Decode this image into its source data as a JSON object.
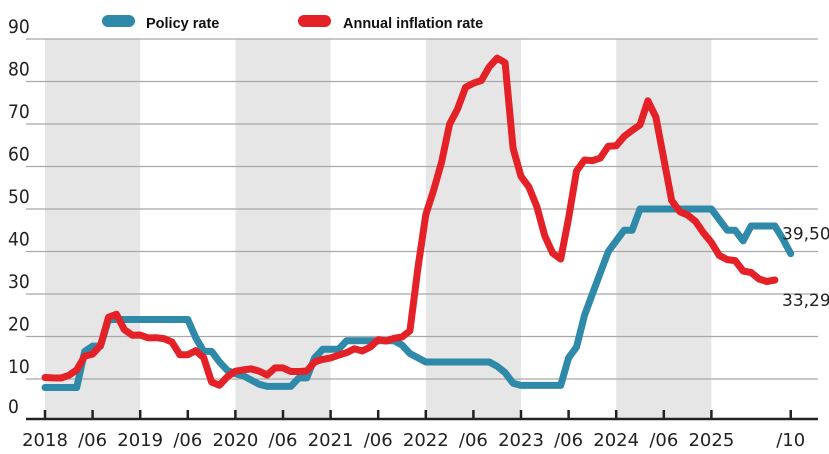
{
  "chart_data": {
    "type": "line",
    "title": "",
    "xlabel": "",
    "ylabel": "",
    "ylim": [
      0,
      90
    ],
    "yticks": [
      0,
      10,
      20,
      30,
      40,
      50,
      60,
      70,
      80,
      90
    ],
    "ytick_labels": [
      "0",
      "10",
      "20",
      "30",
      "40",
      "50",
      "60",
      "70",
      "80",
      "90"
    ],
    "x_start": "2018-01",
    "x_end": "2025-10",
    "xticks": [
      {
        "month": 0,
        "label": "2018"
      },
      {
        "month": 6,
        "label": "/06"
      },
      {
        "month": 12,
        "label": "2019"
      },
      {
        "month": 18,
        "label": "/06"
      },
      {
        "month": 24,
        "label": "2020"
      },
      {
        "month": 30,
        "label": "/06"
      },
      {
        "month": 36,
        "label": "2021"
      },
      {
        "month": 42,
        "label": "/06"
      },
      {
        "month": 48,
        "label": "2022"
      },
      {
        "month": 54,
        "label": "/06"
      },
      {
        "month": 60,
        "label": "2023"
      },
      {
        "month": 66,
        "label": "/06"
      },
      {
        "month": 72,
        "label": "2024"
      },
      {
        "month": 78,
        "label": "/06"
      },
      {
        "month": 84,
        "label": "2025"
      },
      {
        "month": 94,
        "label": "/10"
      }
    ],
    "shaded_years": [
      "2018",
      "2020",
      "2022",
      "2024"
    ],
    "grid": true,
    "legend_position": "top",
    "series": [
      {
        "name": "Policy rate",
        "color": "#2e8aa8",
        "end_label": "39,50",
        "points": [
          [
            0,
            8
          ],
          [
            1,
            8
          ],
          [
            2,
            8
          ],
          [
            3,
            8
          ],
          [
            4,
            8
          ],
          [
            5,
            16.5
          ],
          [
            6,
            17.75
          ],
          [
            7,
            17.75
          ],
          [
            8,
            24
          ],
          [
            9,
            24
          ],
          [
            10,
            24
          ],
          [
            11,
            24
          ],
          [
            12,
            24
          ],
          [
            13,
            24
          ],
          [
            14,
            24
          ],
          [
            15,
            24
          ],
          [
            16,
            24
          ],
          [
            17,
            24
          ],
          [
            18,
            24
          ],
          [
            19,
            19.75
          ],
          [
            20,
            16.5
          ],
          [
            21,
            16.5
          ],
          [
            22,
            14
          ],
          [
            23,
            12
          ],
          [
            24,
            11.25
          ],
          [
            25,
            10.75
          ],
          [
            26,
            9.75
          ],
          [
            27,
            8.75
          ],
          [
            28,
            8.25
          ],
          [
            29,
            8.25
          ],
          [
            30,
            8.25
          ],
          [
            31,
            8.25
          ],
          [
            32,
            10.25
          ],
          [
            33,
            10.25
          ],
          [
            34,
            15
          ],
          [
            35,
            17
          ],
          [
            36,
            17
          ],
          [
            37,
            17
          ],
          [
            38,
            19
          ],
          [
            39,
            19
          ],
          [
            40,
            19
          ],
          [
            41,
            19
          ],
          [
            42,
            19
          ],
          [
            43,
            19
          ],
          [
            44,
            19
          ],
          [
            45,
            18
          ],
          [
            46,
            16
          ],
          [
            47,
            15
          ],
          [
            48,
            14
          ],
          [
            49,
            14
          ],
          [
            50,
            14
          ],
          [
            51,
            14
          ],
          [
            52,
            14
          ],
          [
            53,
            14
          ],
          [
            54,
            14
          ],
          [
            55,
            14
          ],
          [
            56,
            14
          ],
          [
            57,
            13
          ],
          [
            58,
            11.5
          ],
          [
            59,
            9
          ],
          [
            60,
            8.5
          ],
          [
            61,
            8.5
          ],
          [
            62,
            8.5
          ],
          [
            63,
            8.5
          ],
          [
            64,
            8.5
          ],
          [
            65,
            8.5
          ],
          [
            66,
            15
          ],
          [
            67,
            17.5
          ],
          [
            68,
            25
          ],
          [
            69,
            30
          ],
          [
            70,
            35
          ],
          [
            71,
            40
          ],
          [
            72,
            42.5
          ],
          [
            73,
            45
          ],
          [
            74,
            45
          ],
          [
            75,
            50
          ],
          [
            76,
            50
          ],
          [
            77,
            50
          ],
          [
            78,
            50
          ],
          [
            79,
            50
          ],
          [
            80,
            50
          ],
          [
            81,
            50
          ],
          [
            82,
            50
          ],
          [
            83,
            50
          ],
          [
            84,
            50
          ],
          [
            85,
            47.5
          ],
          [
            86,
            45
          ],
          [
            87,
            45
          ],
          [
            88,
            42.5
          ],
          [
            89,
            46
          ],
          [
            90,
            46
          ],
          [
            91,
            46
          ],
          [
            92,
            46
          ],
          [
            93,
            43
          ],
          [
            94,
            39.5
          ]
        ]
      },
      {
        "name": "Annual inflation rate",
        "color": "#e42127",
        "end_label": "33,29",
        "points": [
          [
            0,
            10.35
          ],
          [
            1,
            10.26
          ],
          [
            2,
            10.23
          ],
          [
            3,
            10.85
          ],
          [
            4,
            12.15
          ],
          [
            5,
            15.39
          ],
          [
            6,
            15.85
          ],
          [
            7,
            17.9
          ],
          [
            8,
            24.52
          ],
          [
            9,
            25.24
          ],
          [
            10,
            21.62
          ],
          [
            11,
            20.3
          ],
          [
            12,
            20.35
          ],
          [
            13,
            19.67
          ],
          [
            14,
            19.71
          ],
          [
            15,
            19.5
          ],
          [
            16,
            18.71
          ],
          [
            17,
            15.72
          ],
          [
            18,
            15.72
          ],
          [
            19,
            16.65
          ],
          [
            20,
            15.01
          ],
          [
            21,
            9.26
          ],
          [
            22,
            8.55
          ],
          [
            23,
            10.56
          ],
          [
            24,
            11.84
          ],
          [
            25,
            12.15
          ],
          [
            26,
            12.37
          ],
          [
            27,
            11.86
          ],
          [
            28,
            10.94
          ],
          [
            29,
            12.62
          ],
          [
            30,
            12.62
          ],
          [
            31,
            11.76
          ],
          [
            32,
            11.77
          ],
          [
            33,
            11.89
          ],
          [
            34,
            14.03
          ],
          [
            35,
            14.6
          ],
          [
            36,
            14.97
          ],
          [
            37,
            15.61
          ],
          [
            38,
            16.19
          ],
          [
            39,
            17.14
          ],
          [
            40,
            16.59
          ],
          [
            41,
            17.53
          ],
          [
            42,
            19.25
          ],
          [
            43,
            18.95
          ],
          [
            44,
            19.58
          ],
          [
            45,
            19.89
          ],
          [
            46,
            21.31
          ],
          [
            47,
            36.08
          ],
          [
            48,
            48.69
          ],
          [
            49,
            54.44
          ],
          [
            50,
            61.14
          ],
          [
            51,
            69.97
          ],
          [
            52,
            73.5
          ],
          [
            53,
            78.62
          ],
          [
            54,
            79.6
          ],
          [
            55,
            80.21
          ],
          [
            56,
            83.45
          ],
          [
            57,
            85.51
          ],
          [
            58,
            84.39
          ],
          [
            59,
            64.27
          ],
          [
            60,
            57.68
          ],
          [
            61,
            55.18
          ],
          [
            62,
            50.51
          ],
          [
            63,
            43.68
          ],
          [
            64,
            39.59
          ],
          [
            65,
            38.21
          ],
          [
            66,
            47.83
          ],
          [
            67,
            58.94
          ],
          [
            68,
            61.53
          ],
          [
            69,
            61.36
          ],
          [
            70,
            61.98
          ],
          [
            71,
            64.77
          ],
          [
            72,
            64.86
          ],
          [
            73,
            67.07
          ],
          [
            74,
            68.5
          ],
          [
            75,
            69.8
          ],
          [
            76,
            75.45
          ],
          [
            77,
            71.6
          ],
          [
            78,
            61.78
          ],
          [
            79,
            51.97
          ],
          [
            80,
            49.38
          ],
          [
            81,
            48.58
          ],
          [
            82,
            47.09
          ],
          [
            83,
            44.38
          ],
          [
            84,
            42.12
          ],
          [
            85,
            39.05
          ],
          [
            86,
            38.1
          ],
          [
            87,
            37.86
          ],
          [
            88,
            35.41
          ],
          [
            89,
            35.05
          ],
          [
            90,
            33.52
          ],
          [
            91,
            32.95
          ],
          [
            92,
            33.29
          ]
        ]
      }
    ]
  },
  "legend": {
    "items": [
      {
        "label": "Policy rate",
        "color": "#2e8aa8"
      },
      {
        "label": "Annual inflation rate",
        "color": "#e42127"
      }
    ]
  }
}
